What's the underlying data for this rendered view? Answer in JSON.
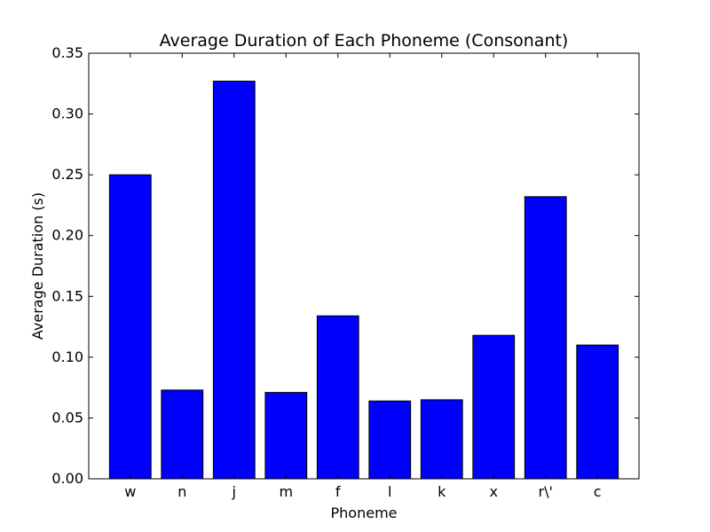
{
  "chart_data": {
    "type": "bar",
    "title": "Average Duration of Each Phoneme (Consonant)",
    "xlabel": "Phoneme",
    "ylabel": "Average Duration (s)",
    "categories": [
      "w",
      "n",
      "j",
      "m",
      "f",
      "l",
      "k",
      "x",
      "r\\'",
      "c"
    ],
    "values": [
      0.25,
      0.073,
      0.327,
      0.071,
      0.134,
      0.064,
      0.065,
      0.118,
      0.232,
      0.11
    ],
    "ylim": [
      0,
      0.35
    ],
    "yticks": [
      "0.00",
      "0.05",
      "0.10",
      "0.15",
      "0.20",
      "0.25",
      "0.30",
      "0.35"
    ],
    "ytick_values": [
      0,
      0.05,
      0.1,
      0.15,
      0.2,
      0.25,
      0.3,
      0.35
    ],
    "bar_color": "#0000ff",
    "edge_color": "#000000",
    "grid": false,
    "legend": false
  }
}
